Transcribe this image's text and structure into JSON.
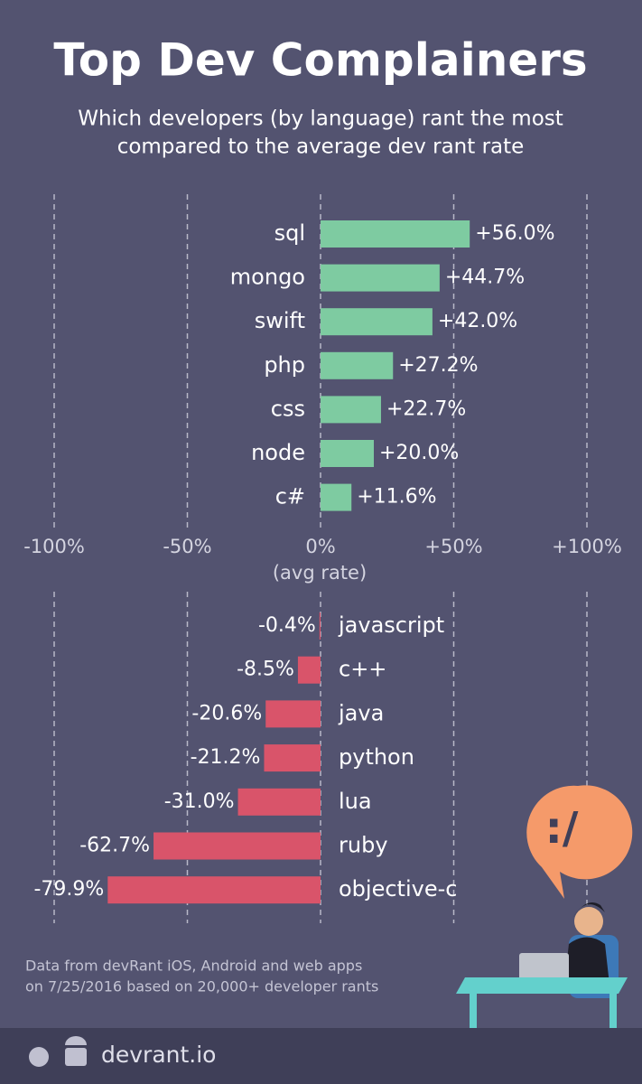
{
  "chart_data": {
    "type": "bar",
    "orientation": "horizontal",
    "title": "Top Dev Complainers",
    "subtitle": [
      "Which developers (by language) rant the most",
      "compared to the average dev rant rate"
    ],
    "categories": [
      "sql",
      "mongo",
      "swift",
      "php",
      "css",
      "node",
      "c#",
      "javascript",
      "c++",
      "java",
      "python",
      "lua",
      "ruby",
      "objective-c"
    ],
    "values": [
      56.0,
      44.7,
      42.0,
      27.2,
      22.7,
      20.0,
      11.6,
      -0.4,
      -8.5,
      -20.6,
      -21.2,
      -31.0,
      -62.7,
      -79.9
    ],
    "value_labels": [
      "+56.0%",
      "+44.7%",
      "+42.0%",
      "+27.2%",
      "+22.7%",
      "+20.0%",
      "+11.6%",
      "-0.4%",
      "-8.5%",
      "-20.6%",
      "-21.2%",
      "-31.0%",
      "-62.7%",
      "-79.9%"
    ],
    "color": "#7ecba1",
    "negative_color": "#d9546a",
    "xlim": [
      -100,
      100
    ],
    "xticks": [
      {
        "value": -100,
        "label": "-100%"
      },
      {
        "value": -50,
        "label": "-50%"
      },
      {
        "value": 0,
        "label": "0%"
      },
      {
        "value": 50,
        "label": "+50%"
      },
      {
        "value": 100,
        "label": "+100%"
      }
    ],
    "xlabel": "(avg rate)",
    "grid": true,
    "footnote": [
      "Data from devRant iOS, Android and web apps",
      "on 7/25/2016 based on 20,000+ developer rants"
    ],
    "brand": "devrant.io",
    "illustration_text": ":/"
  }
}
